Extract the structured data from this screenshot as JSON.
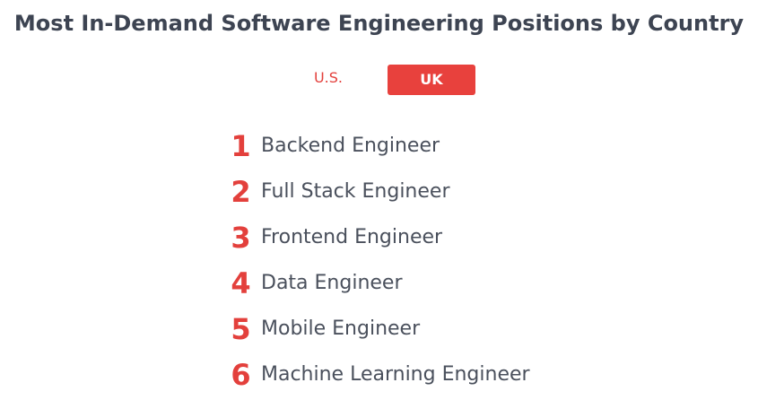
{
  "title": "Most In-Demand Software Engineering Positions by Country",
  "tabs": [
    {
      "label": "U.S.",
      "active": false
    },
    {
      "label": "UK",
      "active": true
    }
  ],
  "ranking": [
    {
      "rank": "1",
      "role": "Backend Engineer"
    },
    {
      "rank": "2",
      "role": "Full Stack Engineer"
    },
    {
      "rank": "3",
      "role": "Frontend Engineer"
    },
    {
      "rank": "4",
      "role": "Data Engineer"
    },
    {
      "rank": "5",
      "role": "Mobile Engineer"
    },
    {
      "rank": "6",
      "role": "Machine Learning Engineer"
    }
  ],
  "colors": {
    "accent": "#e8413d",
    "title_text": "#3d4452",
    "body_text": "#4a505c"
  }
}
